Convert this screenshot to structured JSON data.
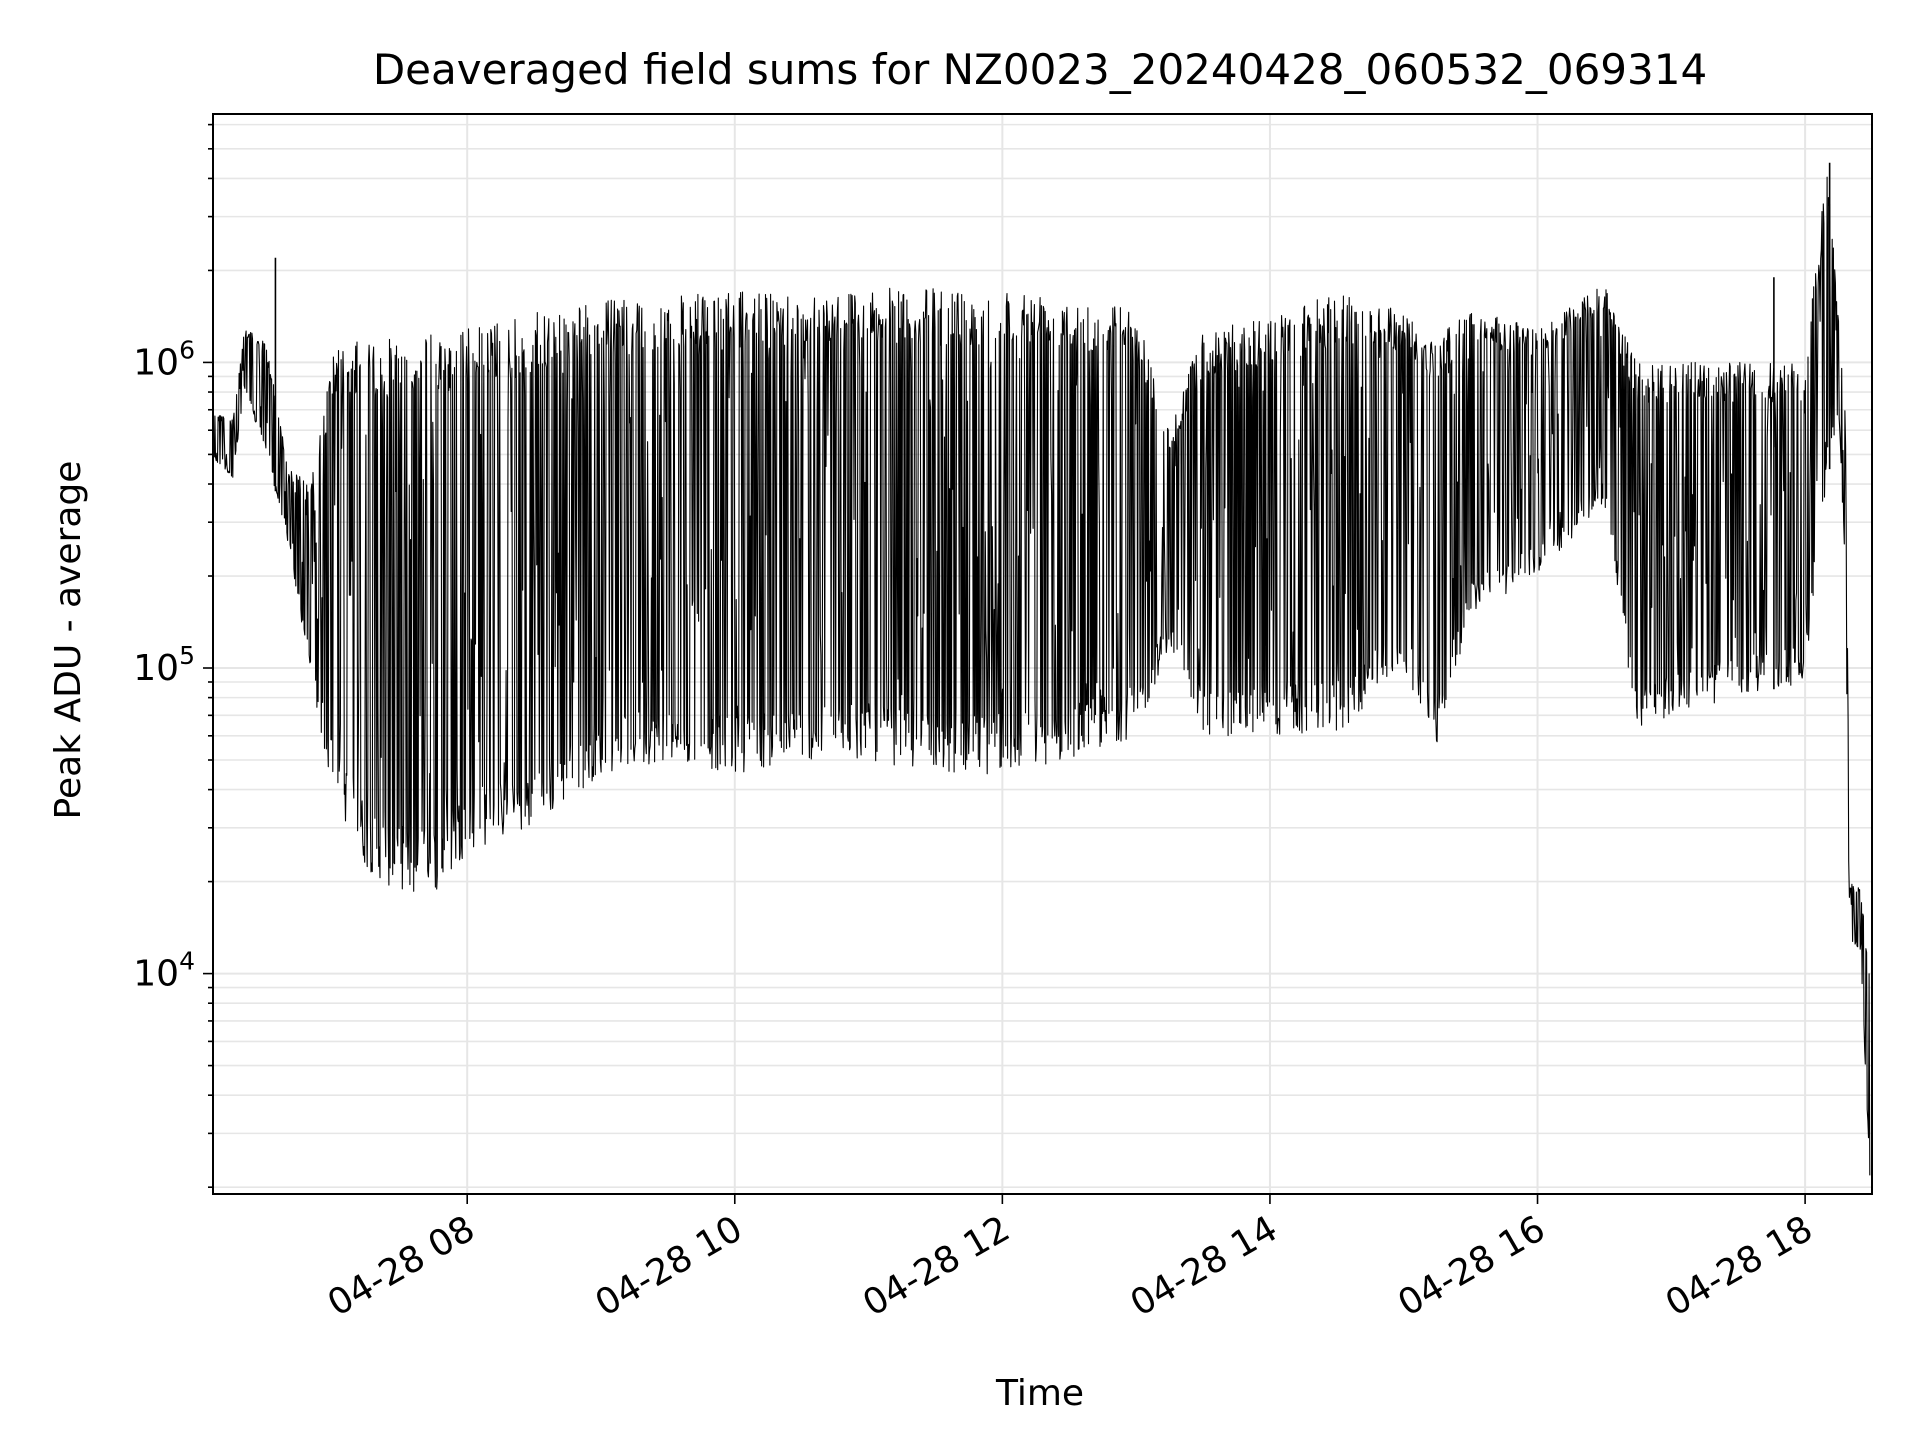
{
  "chart_data": {
    "type": "line",
    "title": "Deaveraged field sums for NZ0023_20240428_060532_069314",
    "xlabel": "Time",
    "ylabel": "Peak ADU - average",
    "yscale": "log",
    "xlim": [
      "2024-04-28 06:06",
      "2024-04-28 18:30"
    ],
    "ylim": [
      1900,
      6500000
    ],
    "grid": true,
    "line_color": "#000000",
    "grid_color": "#e6e6e6",
    "x_ticks": [
      {
        "label": "04-28 08",
        "value": "2024-04-28 08:00"
      },
      {
        "label": "04-28 10",
        "value": "2024-04-28 10:00"
      },
      {
        "label": "04-28 12",
        "value": "2024-04-28 12:00"
      },
      {
        "label": "04-28 14",
        "value": "2024-04-28 14:00"
      },
      {
        "label": "04-28 16",
        "value": "2024-04-28 16:00"
      },
      {
        "label": "04-28 18",
        "value": "2024-04-28 18:00"
      }
    ],
    "y_ticks": [
      {
        "base": "10",
        "exp": "4",
        "value": 10000
      },
      {
        "base": "10",
        "exp": "5",
        "value": 100000
      },
      {
        "base": "10",
        "exp": "6",
        "value": 1000000
      }
    ],
    "series": [
      {
        "style": "rapid oscillation between envelope and base",
        "envelope": [
          {
            "t": "2024-04-28 06:06",
            "low": 480000,
            "high": 700000
          },
          {
            "t": "2024-04-28 06:15",
            "low": 420000,
            "high": 650000
          },
          {
            "t": "2024-04-28 06:20",
            "low": 800000,
            "high": 1300000
          },
          {
            "t": "2024-04-28 06:30",
            "low": 500000,
            "high": 1150000
          },
          {
            "t": "2024-04-28 06:40",
            "low": 250000,
            "high": 450000
          },
          {
            "t": "2024-04-28 06:50",
            "low": 90000,
            "high": 400000
          },
          {
            "t": "2024-04-28 07:00",
            "low": 38000,
            "high": 1100000
          },
          {
            "t": "2024-04-28 07:15",
            "low": 22000,
            "high": 1200000
          },
          {
            "t": "2024-04-28 07:30",
            "low": 18000,
            "high": 1200000
          },
          {
            "t": "2024-04-28 07:45",
            "low": 18000,
            "high": 1250000
          },
          {
            "t": "2024-04-28 08:00",
            "low": 25000,
            "high": 1300000
          },
          {
            "t": "2024-04-28 08:30",
            "low": 30000,
            "high": 1450000
          },
          {
            "t": "2024-04-28 09:00",
            "low": 45000,
            "high": 1600000
          },
          {
            "t": "2024-04-28 09:30",
            "low": 50000,
            "high": 1650000
          },
          {
            "t": "2024-04-28 10:00",
            "low": 45000,
            "high": 1700000
          },
          {
            "t": "2024-04-28 10:30",
            "low": 50000,
            "high": 1700000
          },
          {
            "t": "2024-04-28 11:00",
            "low": 50000,
            "high": 1750000
          },
          {
            "t": "2024-04-28 11:30",
            "low": 45000,
            "high": 1750000
          },
          {
            "t": "2024-04-28 12:00",
            "low": 45000,
            "high": 1750000
          },
          {
            "t": "2024-04-28 12:30",
            "low": 50000,
            "high": 1700000
          },
          {
            "t": "2024-04-28 13:00",
            "low": 60000,
            "high": 1500000
          },
          {
            "t": "2024-04-28 13:15",
            "low": 120000,
            "high": 600000
          },
          {
            "t": "2024-04-28 13:30",
            "low": 60000,
            "high": 1300000
          },
          {
            "t": "2024-04-28 14:00",
            "low": 60000,
            "high": 1400000
          },
          {
            "t": "2024-04-28 14:30",
            "low": 60000,
            "high": 1700000
          },
          {
            "t": "2024-04-28 15:00",
            "low": 100000,
            "high": 1500000
          },
          {
            "t": "2024-04-28 15:15",
            "low": 55000,
            "high": 1200000
          },
          {
            "t": "2024-04-28 15:30",
            "low": 150000,
            "high": 1500000
          },
          {
            "t": "2024-04-28 16:00",
            "low": 200000,
            "high": 1300000
          },
          {
            "t": "2024-04-28 16:30",
            "low": 350000,
            "high": 1800000
          },
          {
            "t": "2024-04-28 16:45",
            "low": 60000,
            "high": 1000000
          },
          {
            "t": "2024-04-28 17:00",
            "low": 70000,
            "high": 1000000
          },
          {
            "t": "2024-04-28 17:30",
            "low": 80000,
            "high": 1000000
          },
          {
            "t": "2024-04-28 18:00",
            "low": 90000,
            "high": 1000000
          },
          {
            "t": "2024-04-28 18:10",
            "low": 400000,
            "high": 4500000
          },
          {
            "t": "2024-04-28 18:15",
            "low": 700000,
            "high": 1400000
          },
          {
            "t": "2024-04-28 18:18",
            "low": 200000,
            "high": 700000
          },
          {
            "t": "2024-04-28 18:20",
            "low": 12000,
            "high": 20000
          },
          {
            "t": "2024-04-28 18:25",
            "low": 12000,
            "high": 19000
          },
          {
            "t": "2024-04-28 18:29",
            "low": 1900,
            "high": 10000
          }
        ],
        "notable_peaks": [
          {
            "t": "2024-04-28 06:34",
            "value": 2200000
          },
          {
            "t": "2024-04-28 18:11",
            "value": 4500000
          },
          {
            "t": "2024-04-28 17:46",
            "value": 1900000
          }
        ]
      }
    ]
  }
}
